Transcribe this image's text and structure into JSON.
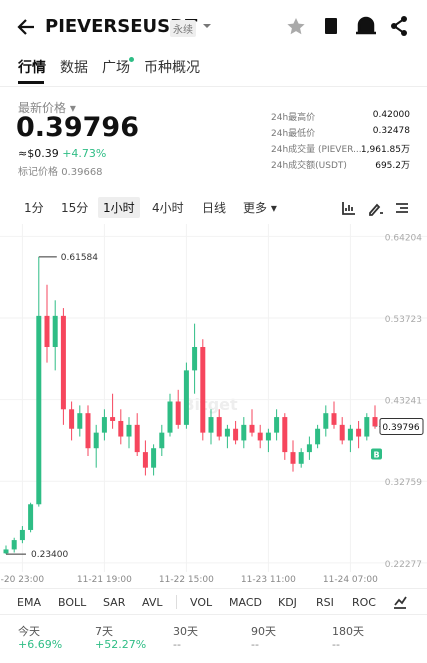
{
  "header": {
    "symbol": "PIEVERSEUSDT",
    "badge": "永续"
  },
  "tabs": [
    "行情",
    "数据",
    "广场",
    "币种概况"
  ],
  "price": {
    "label": "最新价格",
    "last": "0.39796",
    "usd": "≈$0.39",
    "change": "+4.73%",
    "mark_label": "标记价格",
    "mark": "0.39668"
  },
  "stats": [
    {
      "label": "24h最高价",
      "value": "0.42000"
    },
    {
      "label": "24h最低价",
      "value": "0.32478"
    },
    {
      "label": "24h成交量 (PIEVER...",
      "value": "1,961.85万"
    },
    {
      "label": "24h成交额(USDT)",
      "value": "695.2万"
    }
  ],
  "intervals": [
    "1分",
    "15分",
    "1小时",
    "4小时",
    "日线",
    "更多"
  ],
  "indicators": [
    "EMA",
    "BOLL",
    "SAR",
    "AVL",
    "VOL",
    "MACD",
    "KDJ",
    "RSI",
    "ROC"
  ],
  "performance": [
    {
      "period": "今天",
      "change": "+6.69%"
    },
    {
      "period": "7天",
      "change": "+52.27%"
    },
    {
      "period": "30天",
      "change": "--"
    },
    {
      "period": "90天",
      "change": "--"
    },
    {
      "period": "180天",
      "change": "--"
    }
  ],
  "chart_data": {
    "type": "candlestick",
    "up_color": "#2ebd85",
    "down_color": "#f6465d",
    "watermark": "Bitget",
    "buy_marker": "B",
    "grid": true,
    "open": [
      0.235,
      0.24,
      0.252,
      0.265,
      0.298,
      0.54,
      0.5,
      0.54,
      0.42,
      0.395,
      0.415,
      0.37,
      0.39,
      0.41,
      0.405,
      0.385,
      0.4,
      0.365,
      0.345,
      0.37,
      0.39,
      0.43,
      0.4,
      0.47,
      0.5,
      0.39,
      0.41,
      0.385,
      0.395,
      0.38,
      0.4,
      0.39,
      0.38,
      0.39,
      0.41,
      0.365,
      0.35,
      0.365,
      0.375,
      0.395,
      0.415,
      0.4,
      0.38,
      0.395,
      0.385,
      0.41
    ],
    "high": [
      0.245,
      0.255,
      0.27,
      0.3,
      0.61584,
      0.58,
      0.56,
      0.55,
      0.43,
      0.425,
      0.425,
      0.4,
      0.42,
      0.44,
      0.42,
      0.41,
      0.415,
      0.38,
      0.375,
      0.4,
      0.44,
      0.445,
      0.48,
      0.53,
      0.51,
      0.42,
      0.42,
      0.4,
      0.405,
      0.41,
      0.42,
      0.4,
      0.395,
      0.42,
      0.415,
      0.38,
      0.37,
      0.385,
      0.4,
      0.425,
      0.43,
      0.41,
      0.4,
      0.405,
      0.415,
      0.425
    ],
    "low": [
      0.234,
      0.236,
      0.248,
      0.262,
      0.295,
      0.48,
      0.47,
      0.4,
      0.38,
      0.385,
      0.36,
      0.345,
      0.38,
      0.395,
      0.375,
      0.37,
      0.36,
      0.335,
      0.335,
      0.36,
      0.385,
      0.395,
      0.395,
      0.44,
      0.38,
      0.375,
      0.38,
      0.37,
      0.375,
      0.37,
      0.385,
      0.37,
      0.365,
      0.38,
      0.355,
      0.34,
      0.345,
      0.355,
      0.37,
      0.385,
      0.395,
      0.375,
      0.365,
      0.37,
      0.38,
      0.395
    ],
    "close": [
      0.24,
      0.252,
      0.265,
      0.298,
      0.54,
      0.5,
      0.54,
      0.42,
      0.395,
      0.415,
      0.37,
      0.39,
      0.41,
      0.405,
      0.385,
      0.4,
      0.365,
      0.345,
      0.37,
      0.39,
      0.43,
      0.4,
      0.47,
      0.5,
      0.39,
      0.41,
      0.385,
      0.395,
      0.38,
      0.4,
      0.39,
      0.38,
      0.39,
      0.41,
      0.365,
      0.35,
      0.365,
      0.375,
      0.395,
      0.415,
      0.4,
      0.38,
      0.395,
      0.385,
      0.41,
      0.39796
    ],
    "max_label": {
      "value": 0.61584,
      "label": "0.61584"
    },
    "min_label": {
      "value": 0.234,
      "label": "0.23400"
    },
    "current_price": 0.39796,
    "ylim": [
      0.211,
      0.658
    ],
    "yticks": [
      0.64204,
      0.53723,
      0.43241,
      0.32759,
      0.22277
    ],
    "xticks": [
      {
        "value": 2,
        "label": "-20 23:00"
      },
      {
        "value": 12,
        "label": "11-21 19:00"
      },
      {
        "value": 22,
        "label": "11-22 15:00"
      },
      {
        "value": 32,
        "label": "11-23 11:00"
      },
      {
        "value": 42,
        "label": "11-24 07:00"
      }
    ]
  }
}
